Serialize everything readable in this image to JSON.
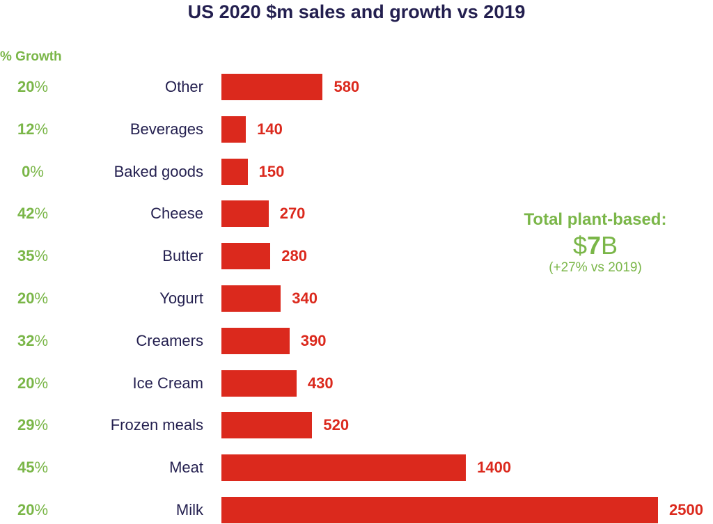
{
  "chart_data": {
    "type": "bar",
    "orientation": "horizontal",
    "title": "US 2020 $m sales and growth vs 2019",
    "categories": [
      "Other",
      "Beverages",
      "Baked goods",
      "Cheese",
      "Butter",
      "Yogurt",
      "Creamers",
      "Ice Cream",
      "Frozen meals",
      "Meat",
      "Milk"
    ],
    "values": [
      580,
      140,
      150,
      270,
      280,
      340,
      390,
      430,
      520,
      1400,
      2500
    ],
    "growth_header": "% Growth",
    "growth": [
      20,
      12,
      0,
      42,
      35,
      20,
      32,
      20,
      29,
      45,
      20
    ],
    "annotation": {
      "label": "Total plant-based:",
      "value_prefix": "$",
      "value_number": "7",
      "value_suffix": "B",
      "sub": "(+27% vs 2019)"
    },
    "colors": {
      "bar": "#db291d",
      "growth": "#7ab648",
      "text": "#231f4f"
    },
    "grid": false,
    "axes_visible": false
  }
}
